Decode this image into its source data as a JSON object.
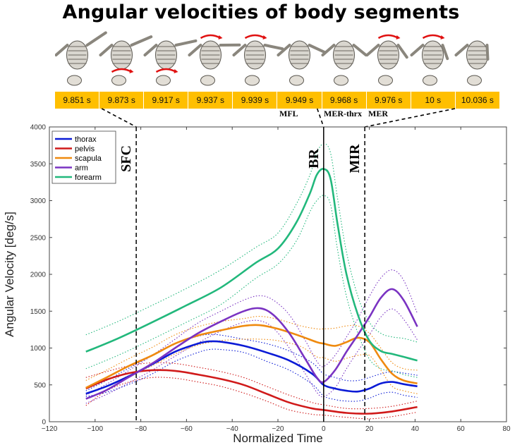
{
  "figure_title": "Angular velocities of body segments",
  "timeline": {
    "times": [
      "9.851 s",
      "9.873 s",
      "9.917 s",
      "9.937 s",
      "9.939 s",
      "9.949 s",
      "9.968 s",
      "9.976 s",
      "10 s",
      "10.036 s"
    ],
    "phase_labels": [
      {
        "text": "MFL",
        "cell": 5
      },
      {
        "text": "MER-thrx",
        "cell": 6
      },
      {
        "text": "MER",
        "cell": 7
      }
    ]
  },
  "chart_data": {
    "type": "line",
    "xlabel": "Normalized Time",
    "ylabel": "Angular Velocity [deg/s]",
    "xlim": [
      -120,
      80
    ],
    "ylim": [
      0,
      4000
    ],
    "xticks": [
      -120,
      -100,
      -80,
      -60,
      -40,
      -20,
      0,
      20,
      40,
      60,
      80
    ],
    "yticks": [
      0,
      500,
      1000,
      1500,
      2000,
      2500,
      3000,
      3500,
      4000
    ],
    "vlines": [
      {
        "x": -82,
        "label": "SFC",
        "style": "dashed"
      },
      {
        "x": 0,
        "label": "BR",
        "style": "solid"
      },
      {
        "x": 18,
        "label": "MIR",
        "style": "dashed"
      }
    ],
    "legend_position": "top-left",
    "series": [
      {
        "name": "thorax",
        "color": "#0b1bd6",
        "x": [
          -104,
          -95,
          -85,
          -75,
          -65,
          -55,
          -50,
          -45,
          -35,
          -25,
          -15,
          -5,
          0,
          5,
          10,
          15,
          20,
          25,
          30,
          35,
          41
        ],
        "mean": [
          380,
          480,
          620,
          780,
          950,
          1060,
          1090,
          1085,
          1030,
          940,
          830,
          650,
          500,
          450,
          420,
          410,
          450,
          520,
          540,
          510,
          480
        ],
        "upper": [
          420,
          560,
          730,
          900,
          1060,
          1160,
          1185,
          1175,
          1120,
          1060,
          960,
          800,
          650,
          600,
          560,
          560,
          600,
          650,
          680,
          660,
          630
        ],
        "lower": [
          340,
          400,
          510,
          650,
          820,
          940,
          980,
          980,
          940,
          820,
          700,
          510,
          350,
          300,
          280,
          280,
          320,
          380,
          400,
          360,
          330
        ]
      },
      {
        "name": "pelvis",
        "color": "#d01a1a",
        "x": [
          -104,
          -95,
          -85,
          -75,
          -65,
          -55,
          -45,
          -35,
          -25,
          -15,
          -5,
          0,
          10,
          20,
          30,
          41
        ],
        "mean": [
          450,
          570,
          660,
          700,
          690,
          640,
          580,
          500,
          380,
          260,
          180,
          160,
          120,
          110,
          140,
          200
        ],
        "upper": [
          600,
          680,
          760,
          800,
          790,
          740,
          680,
          600,
          480,
          360,
          260,
          230,
          180,
          180,
          210,
          280
        ],
        "lower": [
          220,
          420,
          540,
          600,
          590,
          540,
          480,
          390,
          280,
          160,
          100,
          90,
          60,
          40,
          70,
          130
        ]
      },
      {
        "name": "scapula",
        "color": "#ef8a0f",
        "x": [
          -104,
          -95,
          -85,
          -75,
          -65,
          -55,
          -45,
          -35,
          -28,
          -20,
          -10,
          -3,
          0,
          5,
          10,
          15,
          20,
          25,
          30,
          35,
          41
        ],
        "mean": [
          460,
          600,
          760,
          900,
          1060,
          1170,
          1240,
          1300,
          1310,
          1260,
          1160,
          1080,
          1060,
          1030,
          1080,
          1140,
          1080,
          850,
          650,
          560,
          520
        ],
        "upper": [
          560,
          700,
          860,
          1010,
          1180,
          1290,
          1360,
          1400,
          1430,
          1390,
          1300,
          1260,
          1260,
          1270,
          1300,
          1300,
          1200,
          1000,
          800,
          720,
          700
        ],
        "lower": [
          380,
          480,
          630,
          760,
          920,
          1040,
          1100,
          1120,
          1120,
          1100,
          1020,
          880,
          870,
          820,
          860,
          900,
          900,
          700,
          480,
          420,
          380
        ]
      },
      {
        "name": "arm",
        "color": "#7a33c2",
        "x": [
          -104,
          -95,
          -85,
          -75,
          -65,
          -55,
          -45,
          -35,
          -28,
          -22,
          -15,
          -8,
          -3,
          0,
          5,
          10,
          15,
          20,
          25,
          30,
          35,
          41
        ],
        "mean": [
          310,
          430,
          610,
          790,
          1000,
          1200,
          1360,
          1500,
          1540,
          1450,
          1200,
          850,
          600,
          540,
          700,
          950,
          1180,
          1420,
          1680,
          1800,
          1650,
          1290
        ],
        "upper": [
          360,
          510,
          700,
          900,
          1120,
          1340,
          1500,
          1650,
          1710,
          1650,
          1450,
          1100,
          820,
          750,
          900,
          1150,
          1400,
          1700,
          1950,
          2060,
          1920,
          1470
        ],
        "lower": [
          250,
          370,
          530,
          700,
          890,
          1070,
          1230,
          1350,
          1370,
          1270,
          1000,
          650,
          400,
          340,
          460,
          720,
          960,
          1180,
          1420,
          1530,
          1390,
          1110
        ]
      },
      {
        "name": "forearm",
        "color": "#22b87c",
        "x": [
          -104,
          -90,
          -75,
          -60,
          -45,
          -30,
          -20,
          -12,
          -6,
          -3,
          0,
          3,
          6,
          10,
          15,
          20,
          25,
          30,
          35,
          41
        ],
        "mean": [
          950,
          1130,
          1350,
          1580,
          1820,
          2150,
          2350,
          2700,
          3100,
          3350,
          3430,
          3300,
          2700,
          2000,
          1450,
          1100,
          960,
          920,
          880,
          830
        ],
        "upper": [
          1180,
          1360,
          1580,
          1810,
          2060,
          2360,
          2560,
          2950,
          3350,
          3650,
          3770,
          3650,
          3050,
          2300,
          1700,
          1350,
          1200,
          1150,
          1130,
          1080
        ],
        "lower": [
          720,
          900,
          1120,
          1350,
          1590,
          1940,
          2140,
          2450,
          2850,
          3000,
          3070,
          2950,
          2350,
          1700,
          1200,
          850,
          720,
          690,
          640,
          600
        ]
      }
    ]
  }
}
